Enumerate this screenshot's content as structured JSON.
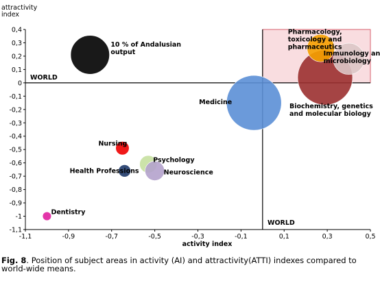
{
  "chart_data": {
    "type": "scatter",
    "subtype": "bubble",
    "xlabel": "activity index",
    "ylabel": [
      "attractivity",
      "index"
    ],
    "xlim": [
      -1.1,
      0.5
    ],
    "ylim": [
      -1.1,
      0.4
    ],
    "x_ticks": [
      "-1,1",
      "-0,9",
      "-0,7",
      "-0,5",
      "-0,3",
      "-0,1",
      "0,1",
      "0,3",
      "0,5"
    ],
    "y_ticks": [
      "0,4",
      "0,3",
      "0,2",
      "0,1",
      "0",
      "-0,1",
      "-0,2",
      "-0,3",
      "-0,4",
      "-0,5",
      "-0,6",
      "-0,7",
      "-0,8",
      "-0,9",
      "-1",
      "-1,1"
    ],
    "reference_lines": [
      "WORLD",
      "WORLD"
    ],
    "highlight_quadrant": {
      "x": [
        0.0,
        0.5
      ],
      "y": [
        0.0,
        0.4
      ],
      "color": "#f9dde0"
    },
    "points": [
      {
        "name": "10 % of Andalusian output",
        "lines": [
          "10 % of Andalusian",
          "output"
        ],
        "x": -0.8,
        "y": 0.21,
        "size": 0.1,
        "color": "#000000"
      },
      {
        "name": "Medicine",
        "lines": [
          "Medicine"
        ],
        "x": -0.04,
        "y": -0.15,
        "size": 0.2,
        "color": "#5b8fd6"
      },
      {
        "name": "Biochemistry, genetics and molecular biology",
        "lines": [
          "Biochemistry, genetics",
          "and molecular biology"
        ],
        "x": 0.29,
        "y": 0.04,
        "size": 0.2,
        "color": "#9b3030"
      },
      {
        "name": "Pharmacology, toxicology and pharmaceutics",
        "lines": [
          "Pharmacology,",
          "toxicology and",
          "pharmaceutics"
        ],
        "x": 0.27,
        "y": 0.26,
        "size": 0.05,
        "color": "#f5a000"
      },
      {
        "name": "Immunology and microbiology",
        "lines": [
          "Immunology and",
          "microbiology"
        ],
        "x": 0.4,
        "y": 0.18,
        "size": 0.065,
        "color": "#dcc6c6"
      },
      {
        "name": "Nursing",
        "lines": [
          "Nursing"
        ],
        "x": -0.65,
        "y": -0.49,
        "size": 0.012,
        "color": "#ee0000"
      },
      {
        "name": "Psychology",
        "lines": [
          "Psychology"
        ],
        "x": -0.53,
        "y": -0.61,
        "size": 0.02,
        "color": "#c6e0a0"
      },
      {
        "name": "Health Professions",
        "lines": [
          "Health Professions"
        ],
        "x": -0.64,
        "y": -0.66,
        "size": 0.01,
        "color": "#1f3a6a"
      },
      {
        "name": "Neuroscience",
        "lines": [
          "Neuroscience"
        ],
        "x": -0.5,
        "y": -0.66,
        "size": 0.025,
        "color": "#b4a2cc"
      },
      {
        "name": "Dentistry",
        "lines": [
          "Dentistry"
        ],
        "x": -1.0,
        "y": -1.0,
        "size": 0.005,
        "color": "#e020a0"
      }
    ]
  },
  "caption": {
    "label": "Fig. 8",
    "text": ". Position of subject areas in activity (AI) and attractivity(ATTI) indexes compared to world-wide means."
  }
}
